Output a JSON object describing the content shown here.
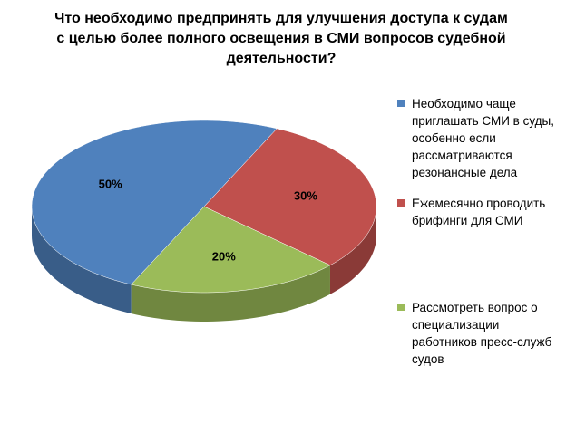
{
  "chart_data": {
    "type": "pie3d",
    "title": "Что необходимо предпринять для улучшения доступа к судам с целью более полного освещения в СМИ вопросов судебной деятельности?",
    "categories": [
      "Необходимо чаще приглашать СМИ в суды, особенно если рассматриваются резонансные дела",
      "Ежемесячно проводить брифинги для СМИ",
      "Рассмотреть вопрос о специализации работников пресс-служб судов"
    ],
    "values": [
      50,
      30,
      20
    ],
    "value_labels": [
      "50%",
      "30%",
      "20%"
    ],
    "colors": [
      "#4f81bd",
      "#c0504d",
      "#9bbb59"
    ],
    "legend": "right"
  }
}
